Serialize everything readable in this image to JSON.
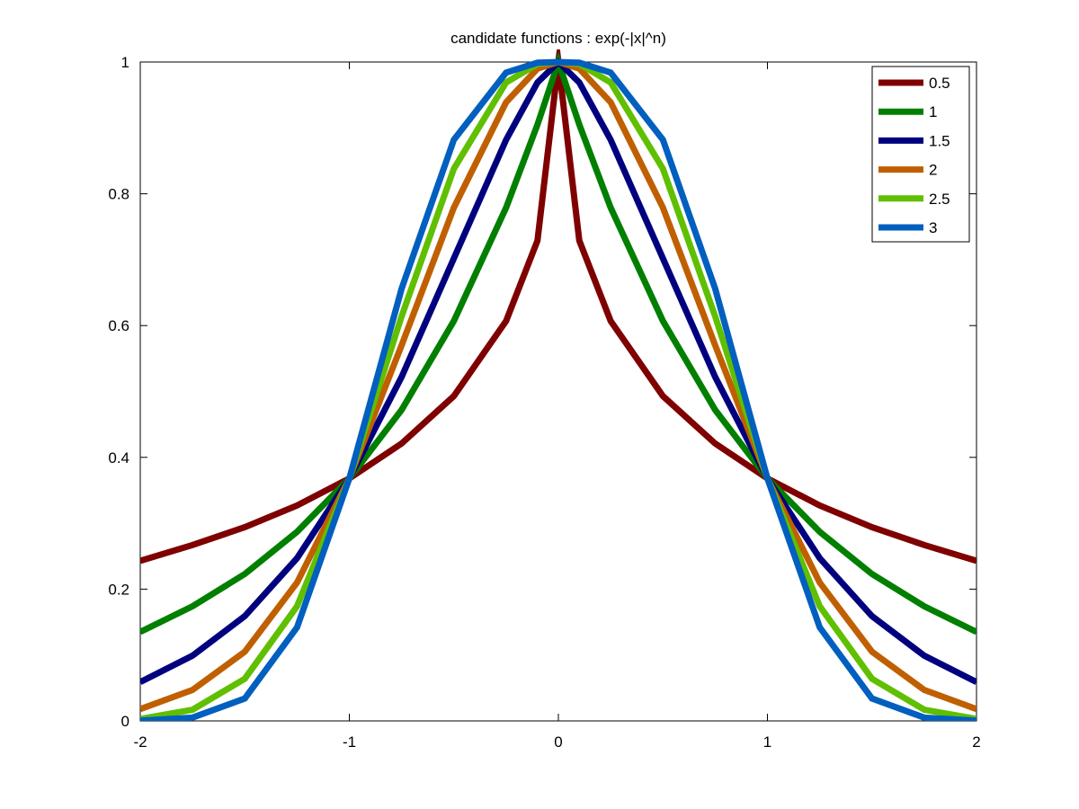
{
  "chart_data": {
    "type": "line",
    "title": "candidate functions : exp(-|x|^n)",
    "xlabel": "",
    "ylabel": "",
    "xlim": [
      -2,
      2
    ],
    "ylim": [
      0,
      1
    ],
    "x_ticks": [
      -2,
      -1,
      0,
      1,
      2
    ],
    "y_ticks": [
      0,
      0.2,
      0.4,
      0.6,
      0.8,
      1
    ],
    "x_tick_labels": [
      "-2",
      "-1",
      "0",
      "1",
      "2"
    ],
    "y_tick_labels": [
      "0",
      "0.2",
      "0.4",
      "0.6",
      "0.8",
      "1"
    ],
    "grid": false,
    "legend_position": "top-right",
    "x": [
      -2,
      -1.75,
      -1.5,
      -1.25,
      -1,
      -0.75,
      -0.5,
      -0.25,
      -0.1,
      0,
      0.1,
      0.25,
      0.5,
      0.75,
      1,
      1.25,
      1.5,
      1.75,
      2
    ],
    "series": [
      {
        "name": "0.5",
        "color": "#7f0000",
        "values": [
          0.243,
          0.267,
          0.294,
          0.327,
          0.368,
          0.421,
          0.493,
          0.607,
          0.729,
          1.0,
          0.729,
          0.607,
          0.493,
          0.421,
          0.368,
          0.327,
          0.294,
          0.267,
          0.243
        ]
      },
      {
        "name": "1",
        "color": "#007f00",
        "values": [
          0.135,
          0.174,
          0.223,
          0.287,
          0.368,
          0.472,
          0.607,
          0.779,
          0.905,
          1.0,
          0.905,
          0.779,
          0.607,
          0.472,
          0.368,
          0.287,
          0.223,
          0.174,
          0.135
        ]
      },
      {
        "name": "1.5",
        "color": "#00007f",
        "values": [
          0.059,
          0.099,
          0.159,
          0.247,
          0.368,
          0.522,
          0.702,
          0.882,
          0.969,
          1.0,
          0.969,
          0.882,
          0.702,
          0.522,
          0.368,
          0.247,
          0.159,
          0.099,
          0.059
        ]
      },
      {
        "name": "2",
        "color": "#c05f00",
        "values": [
          0.018,
          0.047,
          0.105,
          0.21,
          0.368,
          0.57,
          0.779,
          0.939,
          0.99,
          1.0,
          0.99,
          0.939,
          0.779,
          0.57,
          0.368,
          0.21,
          0.105,
          0.047,
          0.018
        ]
      },
      {
        "name": "2.5",
        "color": "#5fbf00",
        "values": [
          0.003,
          0.017,
          0.064,
          0.174,
          0.368,
          0.614,
          0.838,
          0.969,
          0.997,
          1.0,
          0.997,
          0.969,
          0.838,
          0.614,
          0.368,
          0.174,
          0.064,
          0.017,
          0.003
        ]
      },
      {
        "name": "3",
        "color": "#005fbf",
        "values": [
          0.0003,
          0.005,
          0.034,
          0.142,
          0.368,
          0.656,
          0.882,
          0.984,
          0.999,
          1.0,
          0.999,
          0.984,
          0.882,
          0.656,
          0.368,
          0.142,
          0.034,
          0.005,
          0.0003
        ]
      }
    ]
  }
}
